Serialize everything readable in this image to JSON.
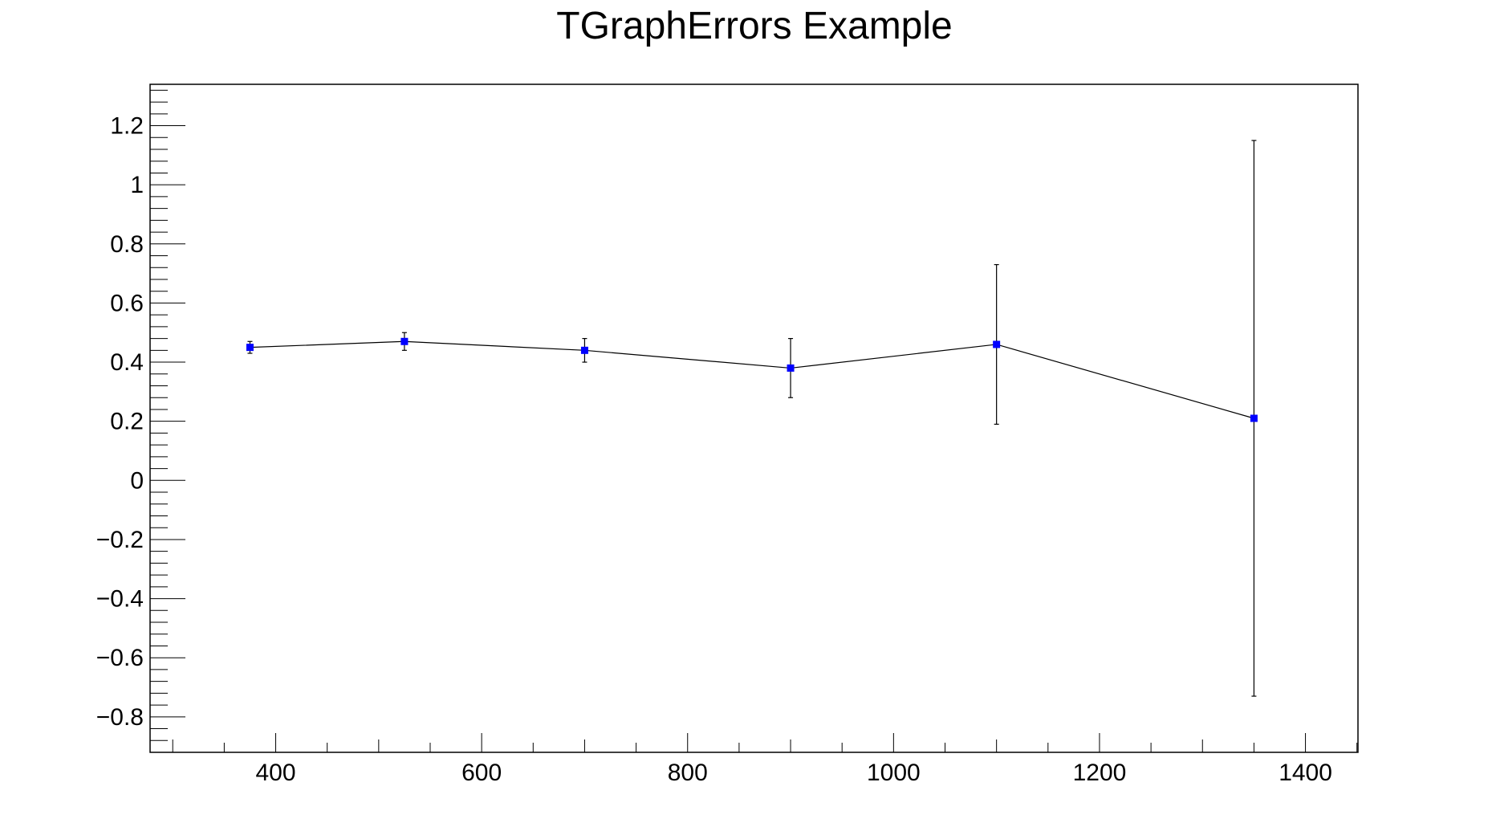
{
  "chart_data": {
    "type": "scatter",
    "title": "TGraphErrors Example",
    "xlabel": "",
    "ylabel": "",
    "xlim": [
      278,
      1451
    ],
    "ylim": [
      -0.92,
      1.34
    ],
    "x_ticks": [
      400,
      600,
      800,
      1000,
      1200,
      1400
    ],
    "x_tick_labels": [
      "400",
      "600",
      "800",
      "1000",
      "1200",
      "1400"
    ],
    "y_ticks": [
      -0.8,
      -0.6,
      -0.4,
      -0.2,
      0,
      0.2,
      0.4,
      0.6,
      0.8,
      1,
      1.2
    ],
    "y_tick_labels": [
      "−0.8",
      "−0.6",
      "−0.4",
      "−0.2",
      "0",
      "0.2",
      "0.4",
      "0.6",
      "0.8",
      "1",
      "1.2"
    ],
    "grid": false,
    "connected": true,
    "marker_color": "#0000ff",
    "line_color": "#000000",
    "series": [
      {
        "x": [
          375,
          525,
          700,
          900,
          1100,
          1350
        ],
        "y": [
          0.45,
          0.47,
          0.44,
          0.38,
          0.46,
          0.21
        ],
        "ey": [
          0.02,
          0.03,
          0.04,
          0.1,
          0.27,
          0.94
        ]
      }
    ]
  }
}
